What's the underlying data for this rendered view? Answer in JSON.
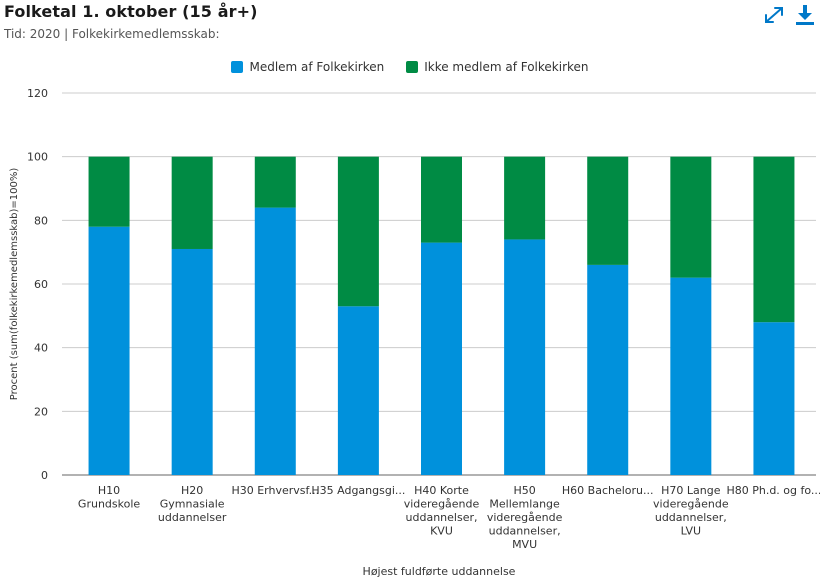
{
  "header": {
    "title": "Folketal 1. oktober (15 år+)",
    "subtitle": "Tid: 2020 | Folkekirkemedlemsskab:",
    "expand_icon": "expand-icon",
    "download_icon": "download-icon"
  },
  "colors": {
    "member": "#0091dc",
    "non_member": "#008b44",
    "grid": "#cccccc",
    "axis": "#666666"
  },
  "chart_data": {
    "type": "bar",
    "stacked": true,
    "title": "",
    "xlabel": "Højest fuldførte uddannelse",
    "ylabel": "Procent (sum(folkekirkemedlemsskab)=100%)",
    "ylim": [
      0,
      120
    ],
    "yticks": [
      0,
      20,
      40,
      60,
      80,
      100,
      120
    ],
    "grid": true,
    "legend_position": "top",
    "categories": [
      "H10 Grundskole",
      "H20 Gymnasiale uddannelser",
      "H30 Erhvervsf...",
      "H35 Adgangsgi...",
      "H40 Korte videregående uddannelser, KVU",
      "H50 Mellemlange videregående uddannelser, MVU",
      "H60 Bacheloru...",
      "H70 Lange videregående uddannelser, LVU",
      "H80 Ph.d. og fo..."
    ],
    "category_label_lines": [
      [
        "H10",
        "Grundskole"
      ],
      [
        "H20",
        "Gymnasiale",
        "uddannelser"
      ],
      [
        "H30 Erhvervsf..."
      ],
      [
        "H35 Adgangsgi..."
      ],
      [
        "H40 Korte",
        "videregående",
        "uddannelser,",
        "KVU"
      ],
      [
        "H50",
        "Mellemlange",
        "videregående",
        "uddannelser,",
        "MVU"
      ],
      [
        "H60 Bacheloru..."
      ],
      [
        "H70 Lange",
        "videregående",
        "uddannelser,",
        "LVU"
      ],
      [
        "H80 Ph.d. og fo..."
      ]
    ],
    "series": [
      {
        "name": "Medlem af Folkekirken",
        "values": [
          78,
          71,
          84,
          53,
          73,
          74,
          66,
          62,
          48
        ]
      },
      {
        "name": "Ikke medlem af Folkekirken",
        "values": [
          22,
          29,
          16,
          47,
          27,
          26,
          34,
          38,
          52
        ]
      }
    ]
  }
}
